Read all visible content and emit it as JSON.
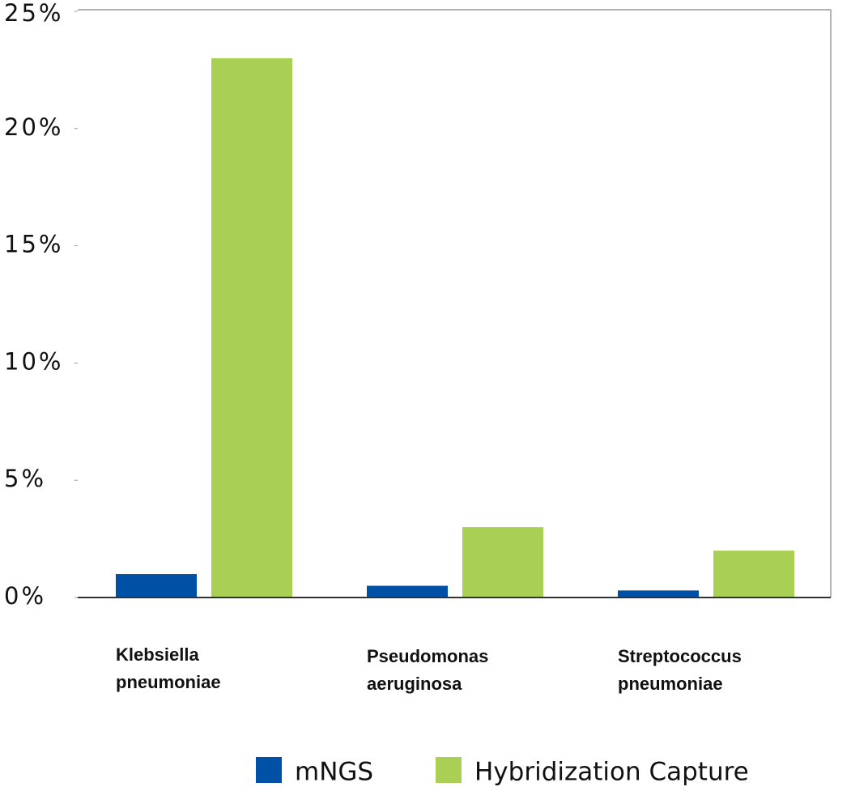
{
  "chart_data": {
    "type": "bar",
    "categories": [
      "Klebsiella pneumoniae",
      "Pseudomonas aeruginosa",
      "Streptococcus pneumoniae"
    ],
    "series": [
      {
        "name": "mNGS",
        "color": "#0051a5",
        "values": [
          1,
          0.5,
          0.3
        ]
      },
      {
        "name": "Hybridization Capture",
        "color": "#a9cf54",
        "values": [
          23,
          3,
          2
        ]
      }
    ],
    "ylim": [
      0,
      25
    ],
    "yticks": [
      {
        "value": 0,
        "label": "0%"
      },
      {
        "value": 5,
        "label": "5%"
      },
      {
        "value": 10,
        "label": "10%"
      },
      {
        "value": 15,
        "label": "15%"
      },
      {
        "value": 20,
        "label": "20%"
      },
      {
        "value": 25,
        "label": "25%"
      }
    ]
  }
}
